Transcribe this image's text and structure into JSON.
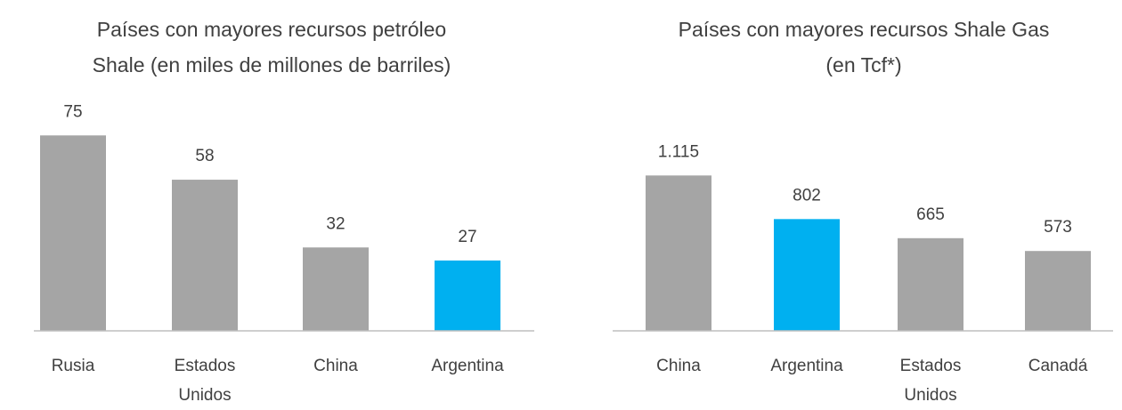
{
  "chart_data": [
    {
      "type": "bar",
      "title": [
        "Países con mayores recursos petróleo",
        "Shale (en miles de millones de barriles)"
      ],
      "categories": [
        "Rusia",
        "Estados Unidos",
        "China",
        "Argentina"
      ],
      "values": [
        75,
        58,
        32,
        27
      ],
      "colors": [
        "#a5a5a5",
        "#a5a5a5",
        "#a5a5a5",
        "#00b0f0"
      ],
      "ylim": [
        0,
        100
      ]
    },
    {
      "type": "bar",
      "title": [
        "Países con mayores recursos Shale Gas",
        "(en Tcf*)"
      ],
      "categories": [
        "China",
        "Argentina",
        "Estados Unidos",
        "Canadá"
      ],
      "values": [
        1115,
        802,
        665,
        573
      ],
      "value_labels": [
        "1.115",
        "802",
        "665",
        "573"
      ],
      "colors": [
        "#a5a5a5",
        "#00b0f0",
        "#a5a5a5",
        "#a5a5a5"
      ],
      "ylim": [
        0,
        1870
      ]
    }
  ]
}
